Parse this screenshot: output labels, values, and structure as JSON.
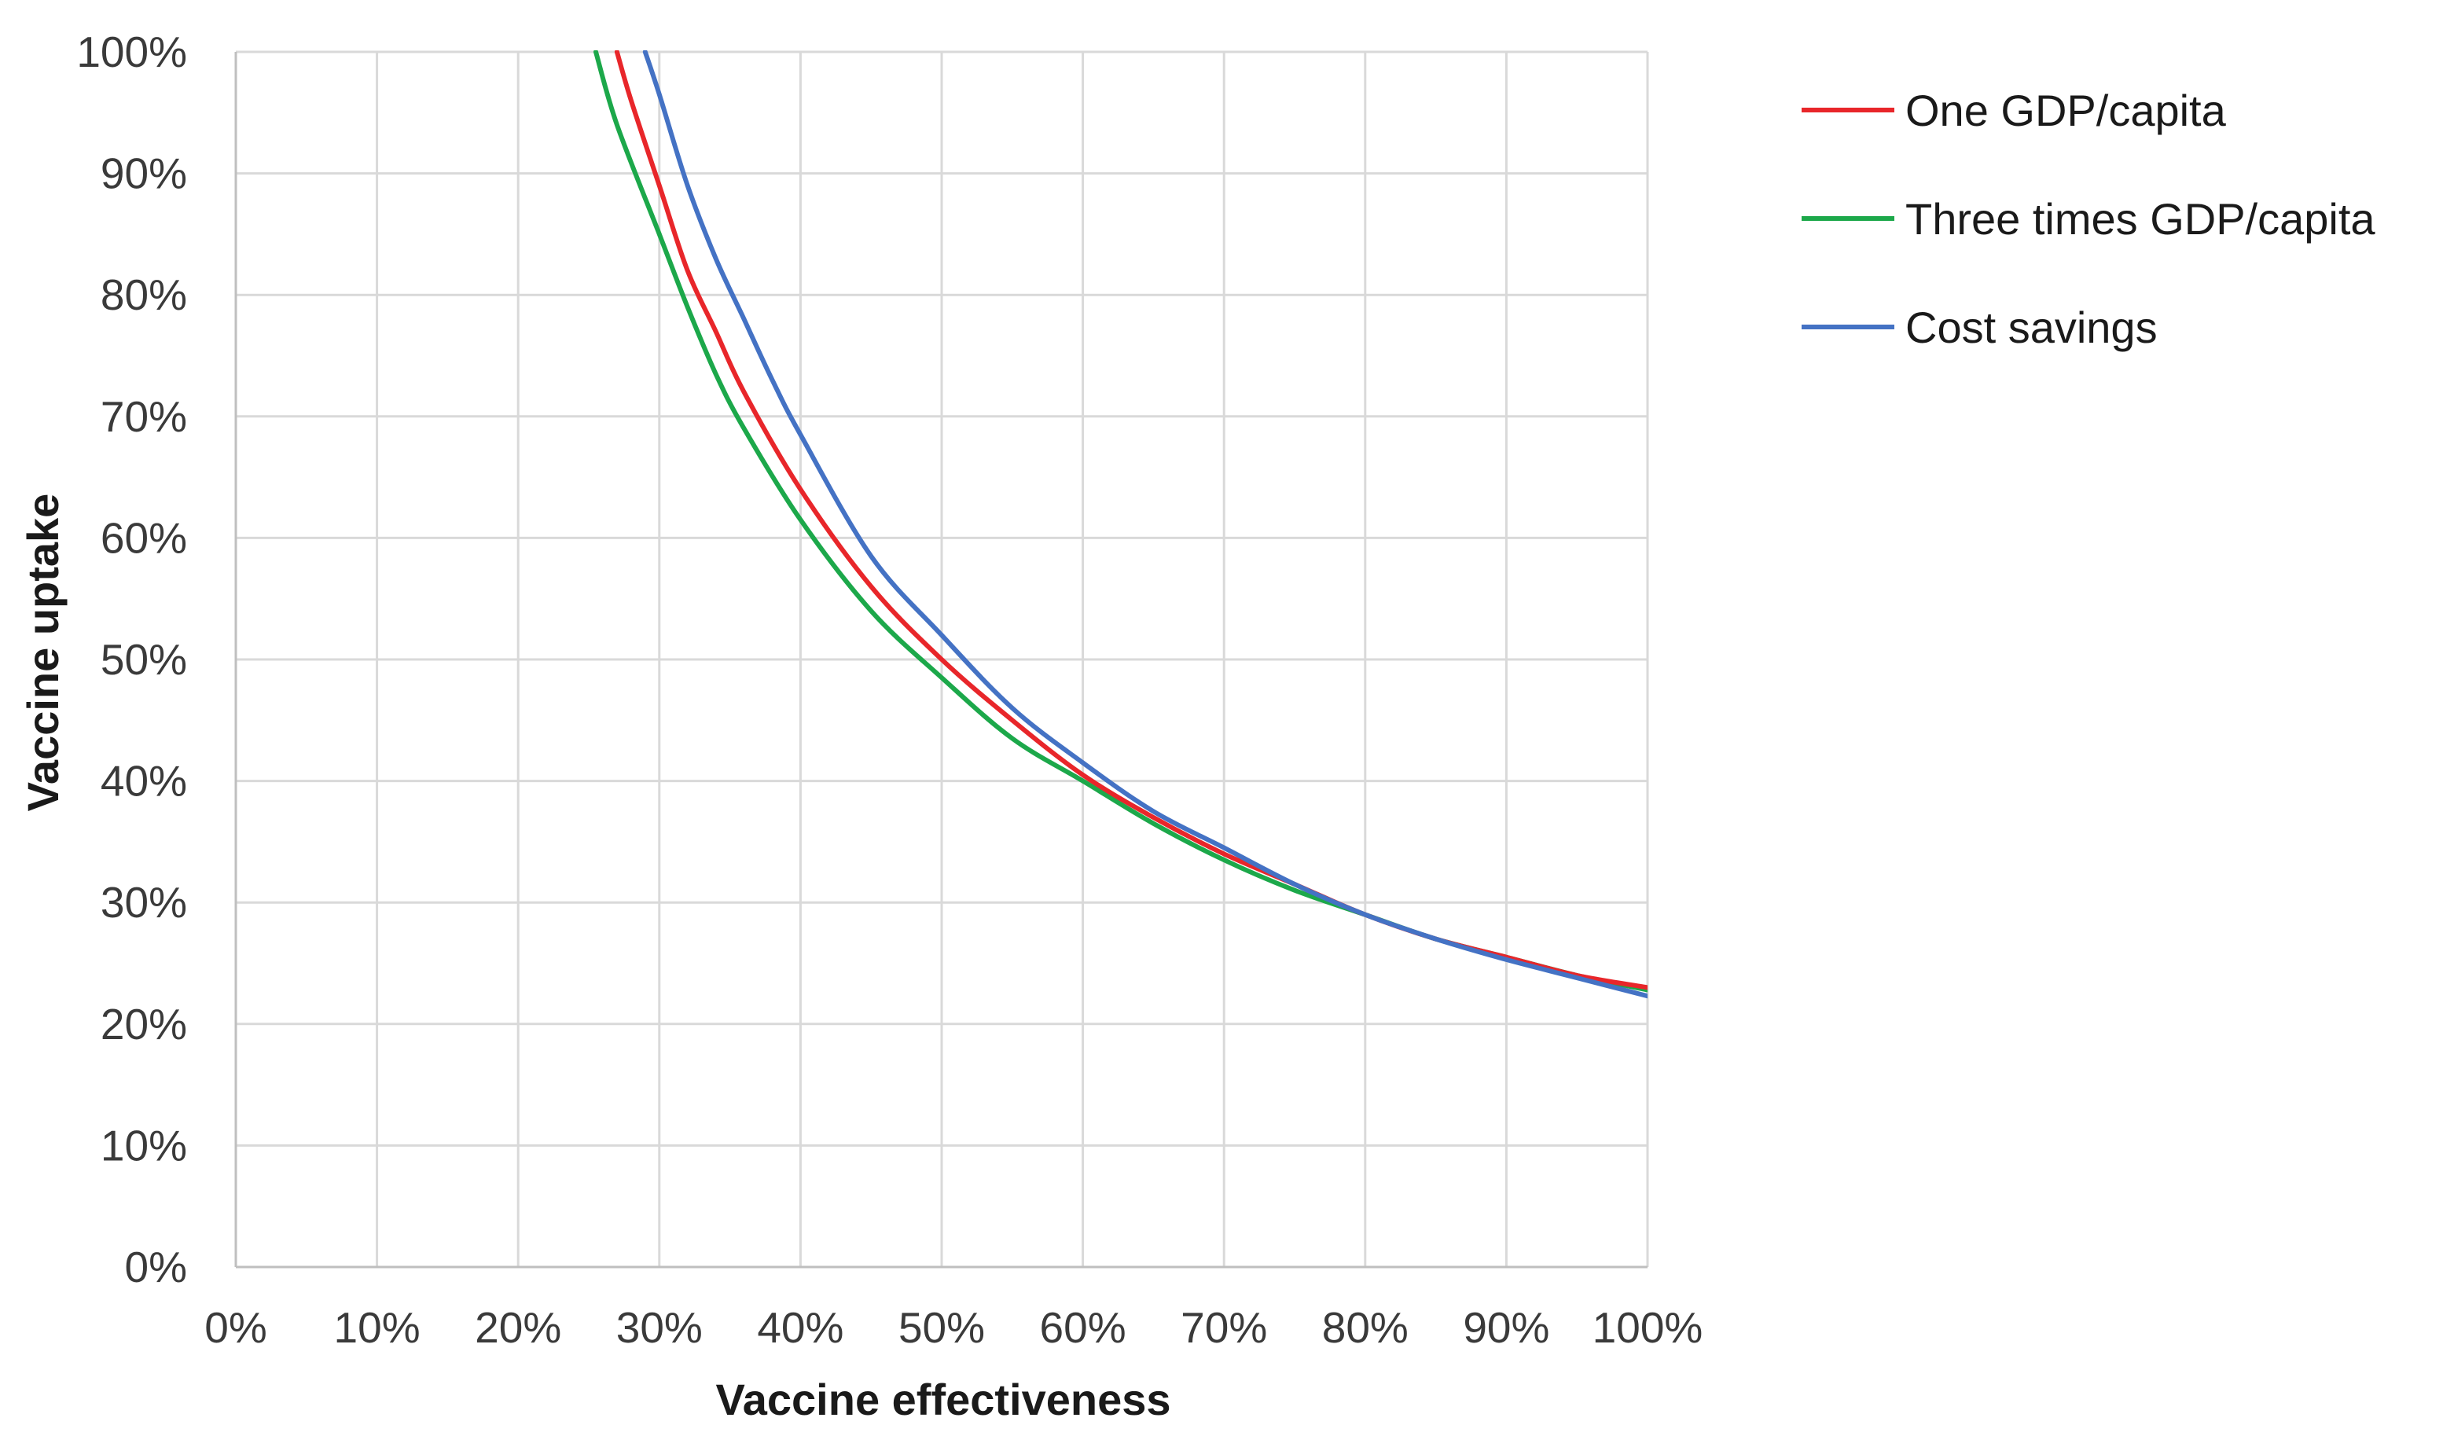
{
  "chart_data": {
    "type": "line",
    "title": "",
    "xlabel": "Vaccine effectiveness",
    "ylabel": "Vaccine uptake",
    "xlim": [
      0,
      100
    ],
    "ylim": [
      0,
      100
    ],
    "x_ticks": [
      "0%",
      "10%",
      "20%",
      "30%",
      "40%",
      "50%",
      "60%",
      "70%",
      "80%",
      "90%",
      "100%"
    ],
    "y_ticks": [
      "0%",
      "10%",
      "20%",
      "30%",
      "40%",
      "50%",
      "60%",
      "70%",
      "80%",
      "90%",
      "100%"
    ],
    "grid": true,
    "legend_position": "right",
    "series": [
      {
        "name": "One GDP/capita",
        "color": "#e8262a",
        "x": [
          27.0,
          28,
          30,
          32,
          34,
          36,
          40,
          45,
          50,
          55,
          60,
          65,
          70,
          75,
          80,
          85,
          90,
          95,
          100
        ],
        "y": [
          100,
          96,
          89,
          82,
          77,
          72,
          64,
          56,
          50,
          45,
          40.5,
          37,
          34,
          31.5,
          29,
          27,
          25.5,
          24,
          23
        ]
      },
      {
        "name": "Three times GDP/capita",
        "color": "#1ca84a",
        "x": [
          25.5,
          27,
          30,
          32,
          34,
          36,
          40,
          45,
          50,
          55,
          60,
          65,
          70,
          75,
          80,
          85,
          90,
          95,
          100
        ],
        "y": [
          100,
          94,
          85,
          79,
          73.5,
          69,
          61.5,
          54,
          48.5,
          43.5,
          40,
          36.5,
          33.5,
          31,
          29,
          27,
          25.5,
          24,
          22.8
        ]
      },
      {
        "name": "Cost savings",
        "color": "#4472c4",
        "x": [
          29.0,
          30,
          32,
          34,
          36,
          38,
          40,
          45,
          50,
          55,
          60,
          65,
          70,
          75,
          80,
          85,
          90,
          95,
          100
        ],
        "y": [
          100,
          96.5,
          89,
          83,
          78,
          73,
          68.5,
          58.5,
          52,
          46,
          41.5,
          37.5,
          34.5,
          31.5,
          29,
          27,
          25.3,
          23.8,
          22.3
        ]
      }
    ]
  }
}
